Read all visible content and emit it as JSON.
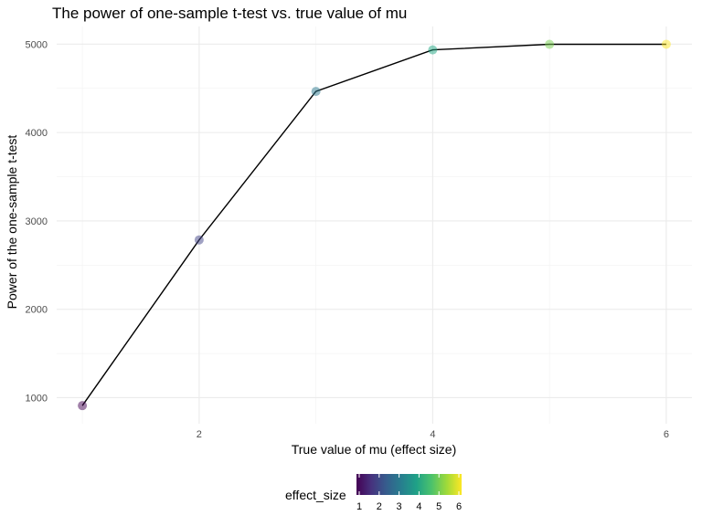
{
  "chart_data": {
    "type": "line",
    "title": "The power of one-sample t-test vs. true value of mu",
    "xlabel": "True value of mu (effect size)",
    "ylabel": "Power of the one-sample t-test",
    "x": [
      1,
      2,
      3,
      4,
      5,
      6
    ],
    "series": [
      {
        "values": [
          910,
          2785,
          4465,
          4935,
          4998,
          4999
        ]
      }
    ],
    "xlim": [
      0.78,
      6.22
    ],
    "ylim": [
      705,
      5200
    ],
    "x_ticks": [
      2,
      4,
      6
    ],
    "x_tick_labels": [
      "2",
      "4",
      "6"
    ],
    "y_ticks": [
      1000,
      2000,
      3000,
      4000,
      5000
    ],
    "y_tick_labels": [
      "1000",
      "2000",
      "3000",
      "4000",
      "5000"
    ],
    "grid": true,
    "line_color": "#000000",
    "point_color_by": "effect_size",
    "point_colors": [
      "#440154",
      "#414487",
      "#2a788e",
      "#22a884",
      "#7ad151",
      "#fde725"
    ],
    "legend": {
      "title": "effect_size",
      "position": "bottom",
      "type": "colorbar",
      "colormap": "viridis",
      "range": [
        1,
        6
      ],
      "ticks": [
        "1",
        "2",
        "3",
        "4",
        "5",
        "6"
      ]
    }
  }
}
